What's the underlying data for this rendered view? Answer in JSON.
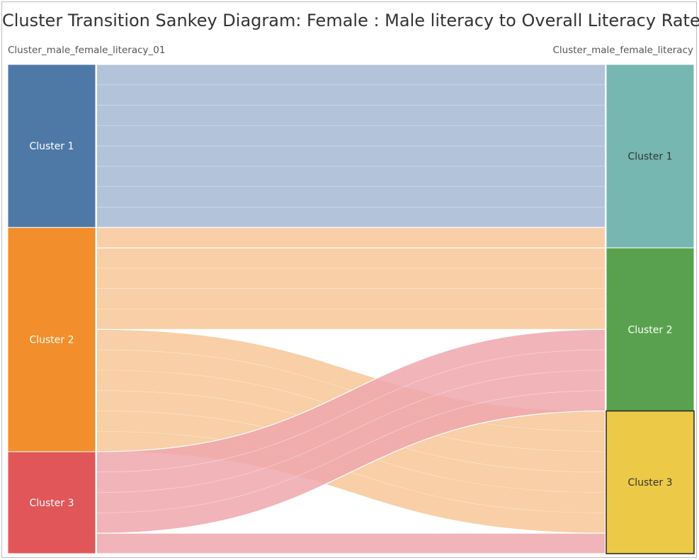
{
  "title": "Cluster Transition Sankey Diagram: Female : Male literacy to Overall Literacy Rate",
  "source_axis_label": "Cluster_male_female_literacy_01",
  "target_axis_label": "Cluster_male_female_literacy",
  "colors": {
    "source_cluster_1": "#4e79a7",
    "source_cluster_2": "#f28e2b",
    "source_cluster_3": "#e15759",
    "target_cluster_1": "#76b7b2",
    "target_cluster_2": "#59a14f",
    "target_cluster_3": "#edc948",
    "flow_cluster_1": "#a5b8d3",
    "flow_cluster_2": "#f7c797",
    "flow_cluster_3": "#efa7ad",
    "crossing_overlap": "#e0856a"
  },
  "chart_data": {
    "type": "sankey",
    "source_nodes": [
      {
        "id": "s1",
        "label": "Cluster 1",
        "color_key": "source_cluster_1",
        "records": 8
      },
      {
        "id": "s2",
        "label": "Cluster 2",
        "color_key": "source_cluster_2",
        "records": 11
      },
      {
        "id": "s3",
        "label": "Cluster 3",
        "color_key": "source_cluster_3",
        "records": 5
      }
    ],
    "target_nodes": [
      {
        "id": "t1",
        "label": "Cluster 1",
        "color_key": "target_cluster_1",
        "records": 9
      },
      {
        "id": "t2",
        "label": "Cluster 2",
        "color_key": "target_cluster_2",
        "records": 8
      },
      {
        "id": "t3",
        "label": "Cluster 3",
        "color_key": "target_cluster_3",
        "records": 7
      }
    ],
    "links": [
      {
        "source": "s1",
        "target": "t1",
        "value": 8,
        "color_key": "flow_cluster_1",
        "stripes": 8
      },
      {
        "source": "s2",
        "target": "t1",
        "value": 1,
        "color_key": "flow_cluster_2",
        "stripes": 1
      },
      {
        "source": "s2",
        "target": "t2",
        "value": 4,
        "color_key": "flow_cluster_2",
        "stripes": 4
      },
      {
        "source": "s2",
        "target": "t3",
        "value": 6,
        "color_key": "flow_cluster_2",
        "stripes": 6
      },
      {
        "source": "s3",
        "target": "t2",
        "value": 4,
        "color_key": "flow_cluster_3",
        "stripes": 4
      },
      {
        "source": "s3",
        "target": "t3",
        "value": 1,
        "color_key": "flow_cluster_3",
        "stripes": 1
      }
    ],
    "selected_target": "t3"
  }
}
